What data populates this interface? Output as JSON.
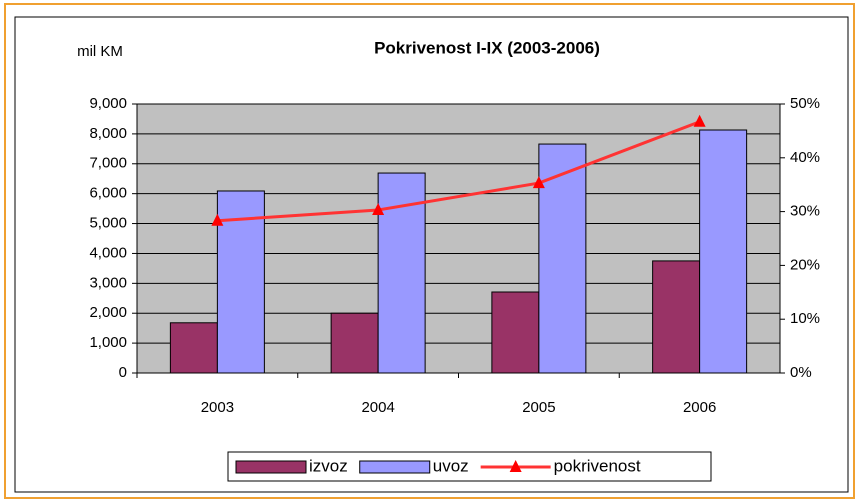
{
  "chart_data": {
    "type": "bar",
    "title": "Pokrivenost I-IX (2003-2006)",
    "y_label": "mil KM",
    "categories": [
      "2003",
      "2004",
      "2005",
      "2006"
    ],
    "series": [
      {
        "name": "izvoz",
        "type": "bar",
        "color": "#993366",
        "values": [
          1680,
          2000,
          2710,
          3750
        ]
      },
      {
        "name": "uvoz",
        "type": "bar",
        "color": "#9999ff",
        "values": [
          6090,
          6690,
          7660,
          8130
        ]
      },
      {
        "name": "pokrivenost",
        "type": "line",
        "axis": "y2",
        "color": "#ff3333",
        "values": [
          28.3,
          30.3,
          35.3,
          46.7
        ]
      }
    ],
    "ylim": [
      0,
      9000
    ],
    "yticks": [
      0,
      {
        "value": 1000,
        "label": "1,000"
      },
      {
        "value": 2000,
        "label": "2,000"
      },
      {
        "value": 3000,
        "label": "3,000"
      },
      {
        "value": 4000,
        "label": "4,000"
      },
      {
        "value": 5000,
        "label": "5,000"
      },
      {
        "value": 6000,
        "label": "6,000"
      },
      {
        "value": 7000,
        "label": "7,000"
      },
      {
        "value": 8000,
        "label": "8,000"
      },
      {
        "value": 9000,
        "label": "9,000"
      }
    ],
    "y2lim": [
      0,
      50
    ],
    "y2ticks": [
      {
        "value": 0,
        "label": "0%"
      },
      {
        "value": 10,
        "label": "10%"
      },
      {
        "value": 20,
        "label": "20%"
      },
      {
        "value": 30,
        "label": "30%"
      },
      {
        "value": 40,
        "label": "40%"
      },
      {
        "value": 50,
        "label": "50%"
      }
    ],
    "grid": true,
    "legend": "bottom",
    "plot_background": "#c0c0c0"
  }
}
